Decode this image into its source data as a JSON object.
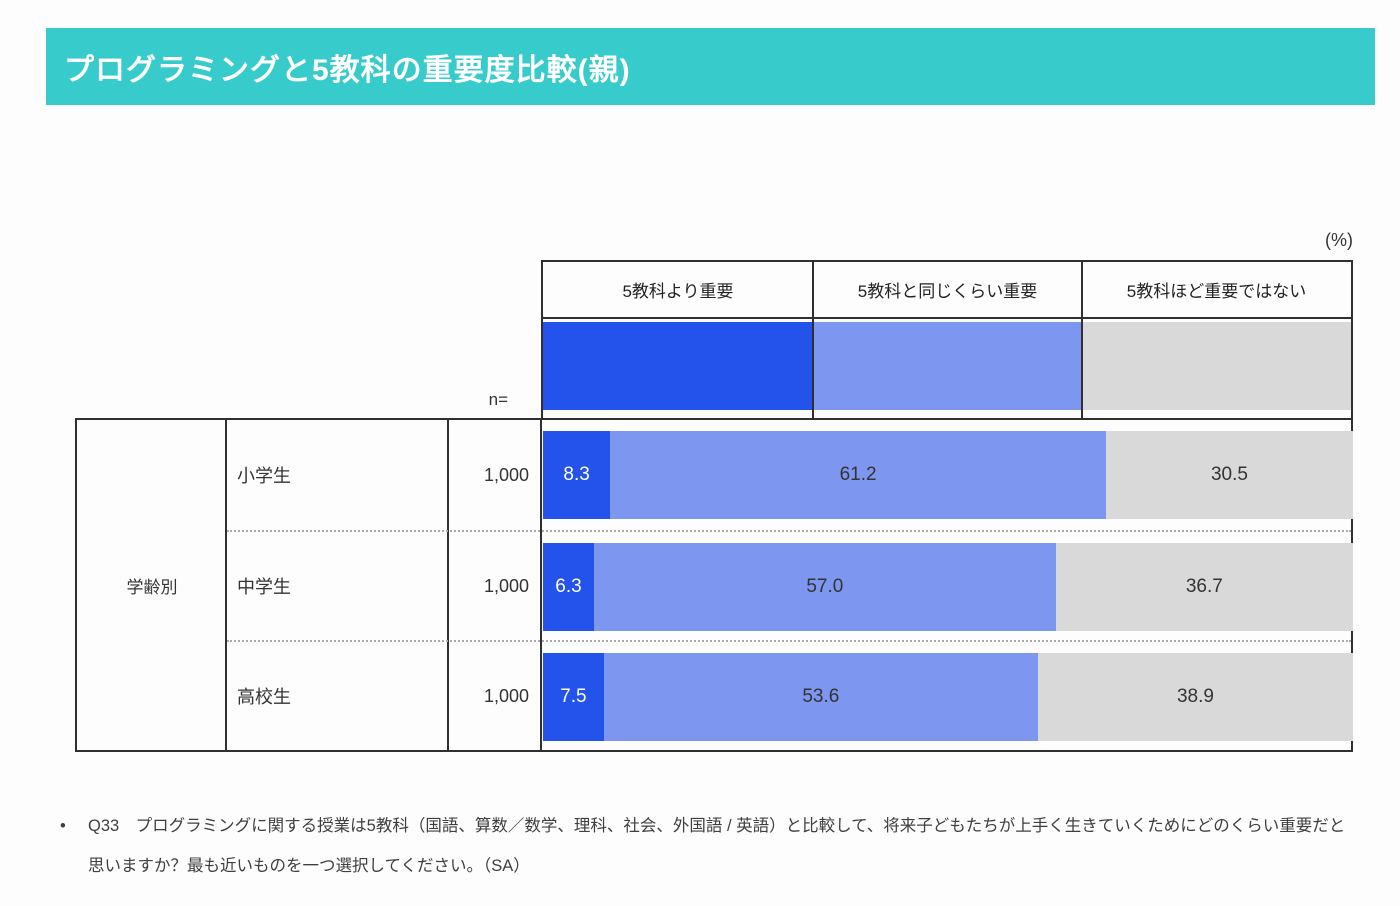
{
  "header": {
    "title": "プログラミングと5教科の重要度比較(親)",
    "banner_color": "#38CBCB"
  },
  "chart": {
    "unit_label": "(%)",
    "n_label": "n="
  },
  "chart_data": {
    "type": "bar",
    "orientation": "horizontal-stacked",
    "title": "プログラミングと5教科の重要度比較(親)",
    "unit": "%",
    "xlim": [
      0,
      100
    ],
    "group_label": "学齢別",
    "n_label": "n=",
    "legend_position": "top",
    "series": [
      {
        "name": "5教科より重要",
        "color": "#2353EB"
      },
      {
        "name": "5教科と同じくらい重要",
        "color": "#7D96EF"
      },
      {
        "name": "5教科ほど重要ではない",
        "color": "#D9D9D9"
      }
    ],
    "categories": [
      "小学生",
      "中学生",
      "高校生"
    ],
    "rows": [
      {
        "label": "小学生",
        "n": "1,000",
        "values": [
          8.3,
          61.2,
          30.5
        ]
      },
      {
        "label": "中学生",
        "n": "1,000",
        "values": [
          6.3,
          57.0,
          36.7
        ]
      },
      {
        "label": "高校生",
        "n": "1,000",
        "values": [
          7.5,
          53.6,
          38.9
        ]
      }
    ]
  },
  "footer": {
    "bullet": "•",
    "note": "Q33　プログラミングに関する授業は5教科（国語、算数／数学、理科、社会、外国語 / 英語）と比較して、将来子どもたちが上手く生きていくためにどのくらい重要だと思いますか？最も近いものを一つ選択してください。（SA）"
  }
}
